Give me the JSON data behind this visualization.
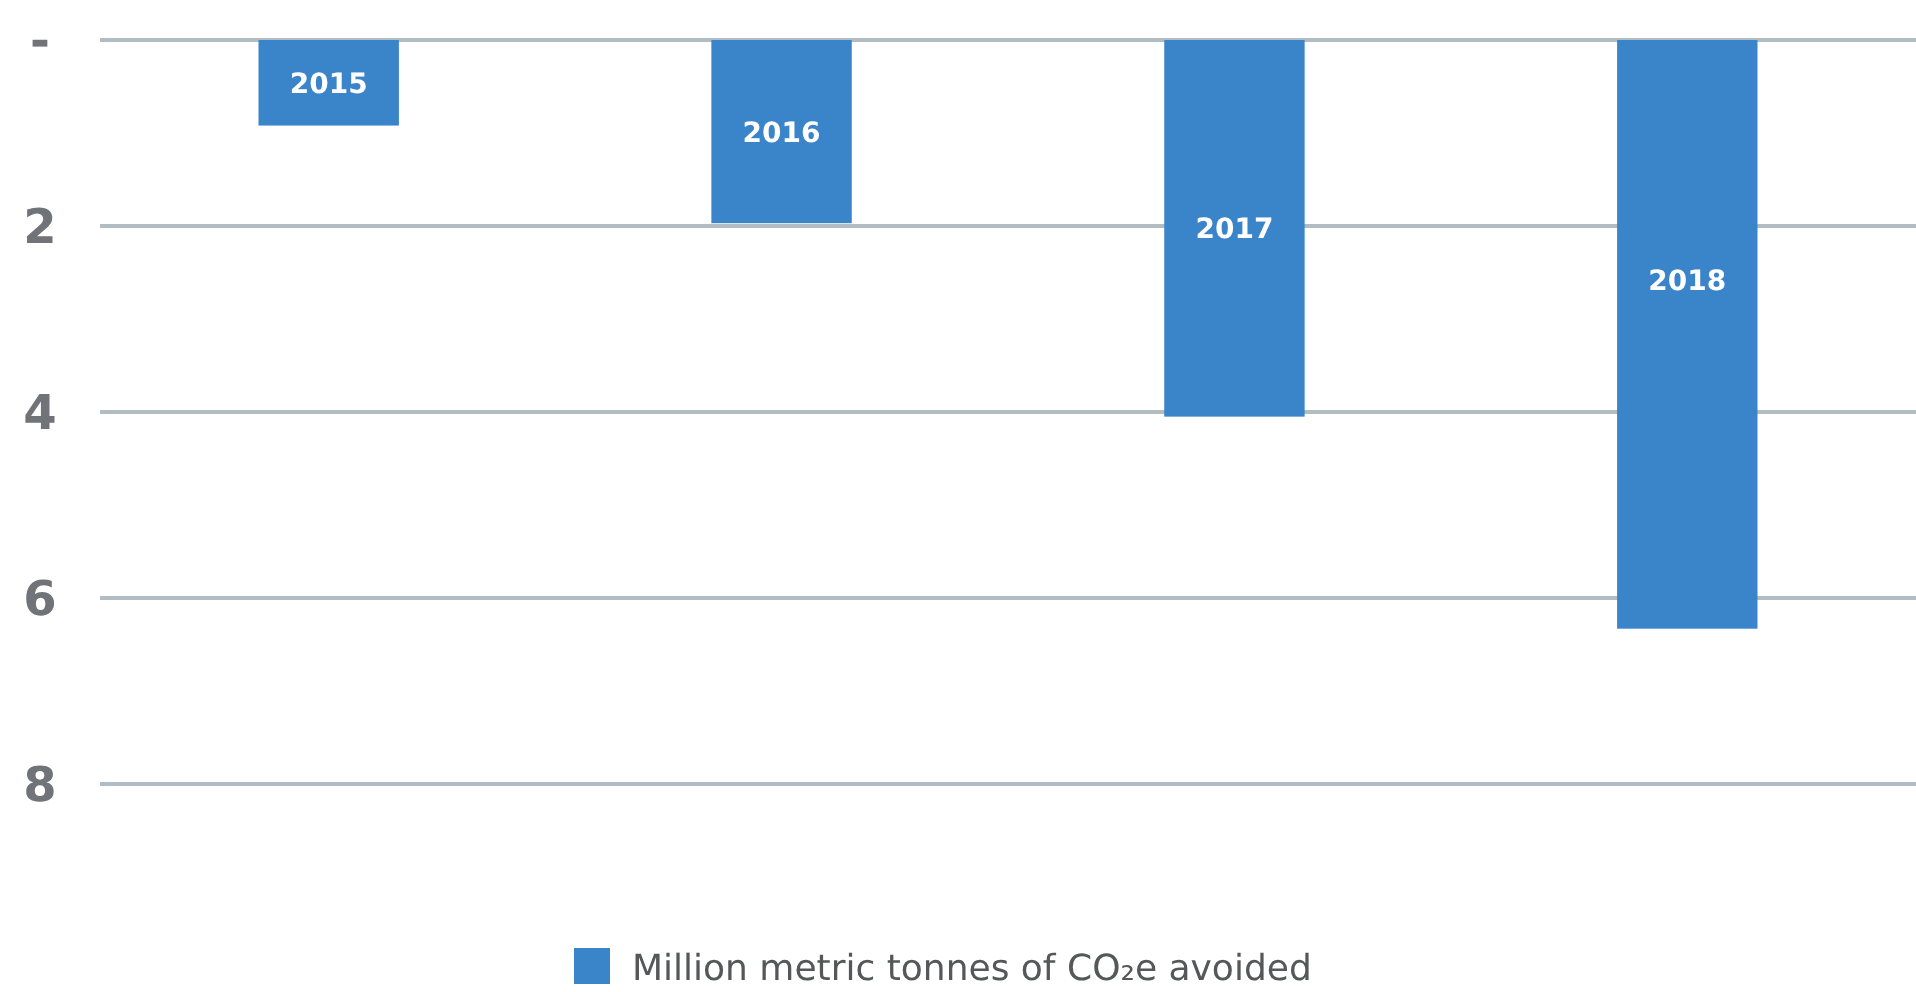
{
  "chart_data": {
    "type": "bar",
    "categories": [
      "2015",
      "2016",
      "2017",
      "2018"
    ],
    "series": [
      {
        "name": "Million metric tonnes of CO₂e avoided",
        "color": "#3a84c9",
        "values": [
          0.92,
          1.97,
          4.05,
          6.33
        ]
      }
    ],
    "ylim": [
      8,
      0
    ],
    "yticks": [
      {
        "value": 0,
        "label": "-"
      },
      2,
      4,
      6,
      8
    ],
    "grid": "y",
    "legend": "bottom"
  }
}
